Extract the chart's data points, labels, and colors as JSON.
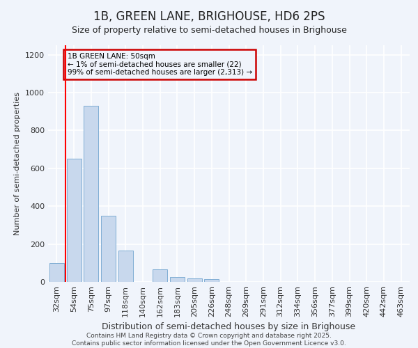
{
  "title": "1B, GREEN LANE, BRIGHOUSE, HD6 2PS",
  "subtitle": "Size of property relative to semi-detached houses in Brighouse",
  "xlabel": "Distribution of semi-detached houses by size in Brighouse",
  "ylabel": "Number of semi-detached properties",
  "categories": [
    "32sqm",
    "54sqm",
    "75sqm",
    "97sqm",
    "118sqm",
    "140sqm",
    "162sqm",
    "183sqm",
    "205sqm",
    "226sqm",
    "248sqm",
    "269sqm",
    "291sqm",
    "312sqm",
    "334sqm",
    "356sqm",
    "377sqm",
    "399sqm",
    "420sqm",
    "442sqm",
    "463sqm"
  ],
  "values": [
    100,
    650,
    930,
    350,
    165,
    0,
    65,
    25,
    20,
    15,
    0,
    0,
    0,
    0,
    0,
    0,
    0,
    0,
    0,
    0,
    0
  ],
  "bar_color": "#c8d8ed",
  "bar_edgecolor": "#7fadd4",
  "background_color": "#f0f4fb",
  "grid_color": "#ffffff",
  "red_line_x": 0.52,
  "annotation_text": "1B GREEN LANE: 50sqm\n← 1% of semi-detached houses are smaller (22)\n99% of semi-detached houses are larger (2,313) →",
  "annotation_box_color": "#cc0000",
  "ylim": [
    0,
    1250
  ],
  "title_fontsize": 12,
  "subtitle_fontsize": 9,
  "tick_fontsize": 8,
  "ylabel_fontsize": 8,
  "xlabel_fontsize": 9,
  "footer_text": "Contains HM Land Registry data © Crown copyright and database right 2025.\nContains public sector information licensed under the Open Government Licence v3.0.",
  "footer_fontsize": 6.5
}
